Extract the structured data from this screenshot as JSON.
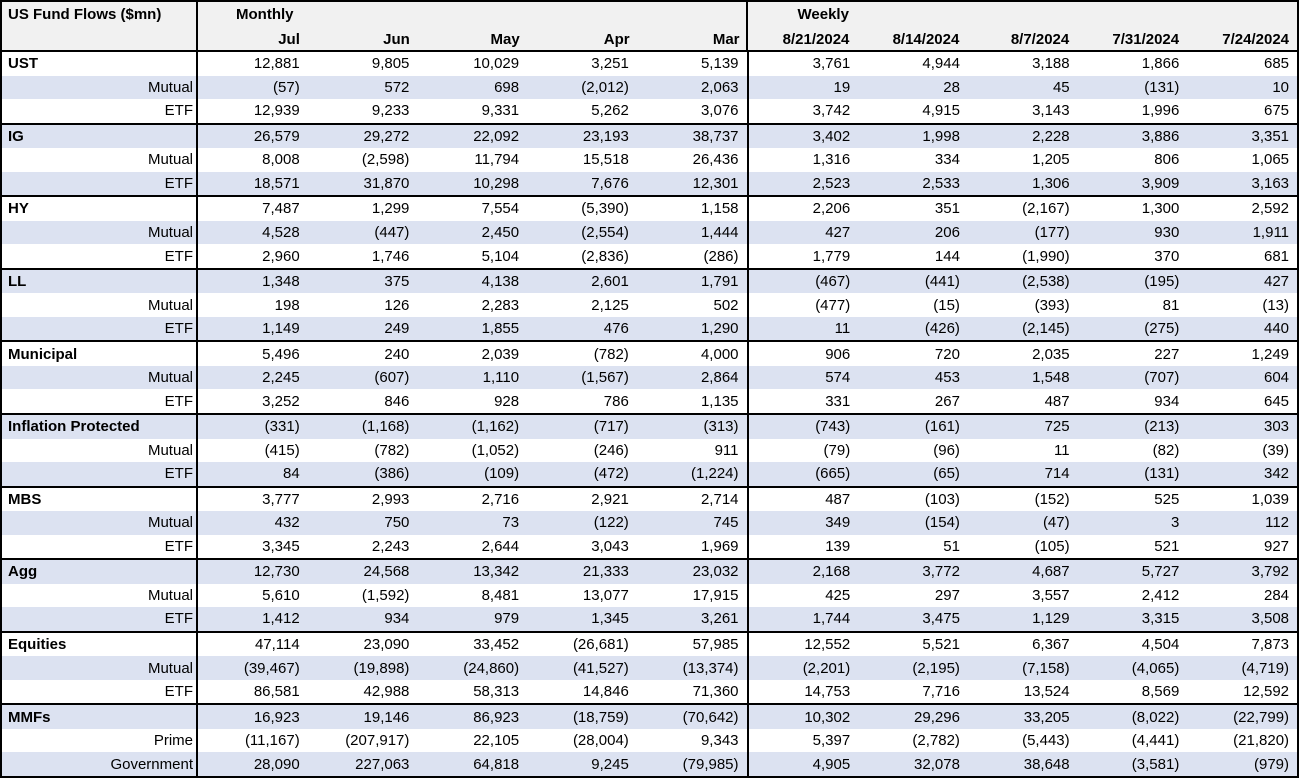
{
  "table": {
    "title": "US Fund Flows ($mn)",
    "colors": {
      "band": "#dce2f1",
      "header_bg": "#f1f1f1",
      "border": "#000000",
      "text": "#000000"
    },
    "sections": [
      {
        "label": "Monthly",
        "columns": [
          "Jul",
          "Jun",
          "May",
          "Apr",
          "Mar"
        ]
      },
      {
        "label": "Weekly",
        "columns": [
          "8/21/2024",
          "8/14/2024",
          "8/7/2024",
          "7/31/2024",
          "7/24/2024"
        ]
      }
    ],
    "groups": [
      {
        "rows": [
          {
            "label": "UST",
            "values": [
              "12,881",
              "9,805",
              "10,029",
              "3,251",
              "5,139",
              "3,761",
              "4,944",
              "3,188",
              "1,866",
              "685"
            ]
          },
          {
            "label": "Mutual",
            "values": [
              "(57)",
              "572",
              "698",
              "(2,012)",
              "2,063",
              "19",
              "28",
              "45",
              "(131)",
              "10"
            ]
          },
          {
            "label": "ETF",
            "values": [
              "12,939",
              "9,233",
              "9,331",
              "5,262",
              "3,076",
              "3,742",
              "4,915",
              "3,143",
              "1,996",
              "675"
            ]
          }
        ]
      },
      {
        "rows": [
          {
            "label": "IG",
            "values": [
              "26,579",
              "29,272",
              "22,092",
              "23,193",
              "38,737",
              "3,402",
              "1,998",
              "2,228",
              "3,886",
              "3,351"
            ]
          },
          {
            "label": "Mutual",
            "values": [
              "8,008",
              "(2,598)",
              "11,794",
              "15,518",
              "26,436",
              "1,316",
              "334",
              "1,205",
              "806",
              "1,065"
            ]
          },
          {
            "label": "ETF",
            "values": [
              "18,571",
              "31,870",
              "10,298",
              "7,676",
              "12,301",
              "2,523",
              "2,533",
              "1,306",
              "3,909",
              "3,163"
            ]
          }
        ]
      },
      {
        "rows": [
          {
            "label": "HY",
            "values": [
              "7,487",
              "1,299",
              "7,554",
              "(5,390)",
              "1,158",
              "2,206",
              "351",
              "(2,167)",
              "1,300",
              "2,592"
            ]
          },
          {
            "label": "Mutual",
            "values": [
              "4,528",
              "(447)",
              "2,450",
              "(2,554)",
              "1,444",
              "427",
              "206",
              "(177)",
              "930",
              "1,911"
            ]
          },
          {
            "label": "ETF",
            "values": [
              "2,960",
              "1,746",
              "5,104",
              "(2,836)",
              "(286)",
              "1,779",
              "144",
              "(1,990)",
              "370",
              "681"
            ]
          }
        ]
      },
      {
        "rows": [
          {
            "label": "LL",
            "values": [
              "1,348",
              "375",
              "4,138",
              "2,601",
              "1,791",
              "(467)",
              "(441)",
              "(2,538)",
              "(195)",
              "427"
            ]
          },
          {
            "label": "Mutual",
            "values": [
              "198",
              "126",
              "2,283",
              "2,125",
              "502",
              "(477)",
              "(15)",
              "(393)",
              "81",
              "(13)"
            ]
          },
          {
            "label": "ETF",
            "values": [
              "1,149",
              "249",
              "1,855",
              "476",
              "1,290",
              "11",
              "(426)",
              "(2,145)",
              "(275)",
              "440"
            ]
          }
        ]
      },
      {
        "rows": [
          {
            "label": "Municipal",
            "values": [
              "5,496",
              "240",
              "2,039",
              "(782)",
              "4,000",
              "906",
              "720",
              "2,035",
              "227",
              "1,249"
            ]
          },
          {
            "label": "Mutual",
            "values": [
              "2,245",
              "(607)",
              "1,110",
              "(1,567)",
              "2,864",
              "574",
              "453",
              "1,548",
              "(707)",
              "604"
            ]
          },
          {
            "label": "ETF",
            "values": [
              "3,252",
              "846",
              "928",
              "786",
              "1,135",
              "331",
              "267",
              "487",
              "934",
              "645"
            ]
          }
        ]
      },
      {
        "rows": [
          {
            "label": "Inflation Protected",
            "values": [
              "(331)",
              "(1,168)",
              "(1,162)",
              "(717)",
              "(313)",
              "(743)",
              "(161)",
              "725",
              "(213)",
              "303"
            ]
          },
          {
            "label": "Mutual",
            "values": [
              "(415)",
              "(782)",
              "(1,052)",
              "(246)",
              "911",
              "(79)",
              "(96)",
              "11",
              "(82)",
              "(39)"
            ]
          },
          {
            "label": "ETF",
            "values": [
              "84",
              "(386)",
              "(109)",
              "(472)",
              "(1,224)",
              "(665)",
              "(65)",
              "714",
              "(131)",
              "342"
            ]
          }
        ]
      },
      {
        "rows": [
          {
            "label": "MBS",
            "values": [
              "3,777",
              "2,993",
              "2,716",
              "2,921",
              "2,714",
              "487",
              "(103)",
              "(152)",
              "525",
              "1,039"
            ]
          },
          {
            "label": "Mutual",
            "values": [
              "432",
              "750",
              "73",
              "(122)",
              "745",
              "349",
              "(154)",
              "(47)",
              "3",
              "112"
            ]
          },
          {
            "label": "ETF",
            "values": [
              "3,345",
              "2,243",
              "2,644",
              "3,043",
              "1,969",
              "139",
              "51",
              "(105)",
              "521",
              "927"
            ]
          }
        ]
      },
      {
        "rows": [
          {
            "label": "Agg",
            "values": [
              "12,730",
              "24,568",
              "13,342",
              "21,333",
              "23,032",
              "2,168",
              "3,772",
              "4,687",
              "5,727",
              "3,792"
            ]
          },
          {
            "label": "Mutual",
            "values": [
              "5,610",
              "(1,592)",
              "8,481",
              "13,077",
              "17,915",
              "425",
              "297",
              "3,557",
              "2,412",
              "284"
            ]
          },
          {
            "label": "ETF",
            "values": [
              "1,412",
              "934",
              "979",
              "1,345",
              "3,261",
              "1,744",
              "3,475",
              "1,129",
              "3,315",
              "3,508"
            ]
          }
        ]
      },
      {
        "rows": [
          {
            "label": "Equities",
            "values": [
              "47,114",
              "23,090",
              "33,452",
              "(26,681)",
              "57,985",
              "12,552",
              "5,521",
              "6,367",
              "4,504",
              "7,873"
            ]
          },
          {
            "label": "Mutual",
            "values": [
              "(39,467)",
              "(19,898)",
              "(24,860)",
              "(41,527)",
              "(13,374)",
              "(2,201)",
              "(2,195)",
              "(7,158)",
              "(4,065)",
              "(4,719)"
            ]
          },
          {
            "label": "ETF",
            "values": [
              "86,581",
              "42,988",
              "58,313",
              "14,846",
              "71,360",
              "14,753",
              "7,716",
              "13,524",
              "8,569",
              "12,592"
            ]
          }
        ]
      },
      {
        "rows": [
          {
            "label": "MMFs",
            "values": [
              "16,923",
              "19,146",
              "86,923",
              "(18,759)",
              "(70,642)",
              "10,302",
              "29,296",
              "33,205",
              "(8,022)",
              "(22,799)"
            ]
          },
          {
            "label": "Prime",
            "values": [
              "(11,167)",
              "(207,917)",
              "22,105",
              "(28,004)",
              "9,343",
              "5,397",
              "(2,782)",
              "(5,443)",
              "(4,441)",
              "(21,820)"
            ]
          },
          {
            "label": "Government",
            "values": [
              "28,090",
              "227,063",
              "64,818",
              "9,245",
              "(79,985)",
              "4,905",
              "32,078",
              "38,648",
              "(3,581)",
              "(979)"
            ]
          }
        ]
      }
    ]
  }
}
